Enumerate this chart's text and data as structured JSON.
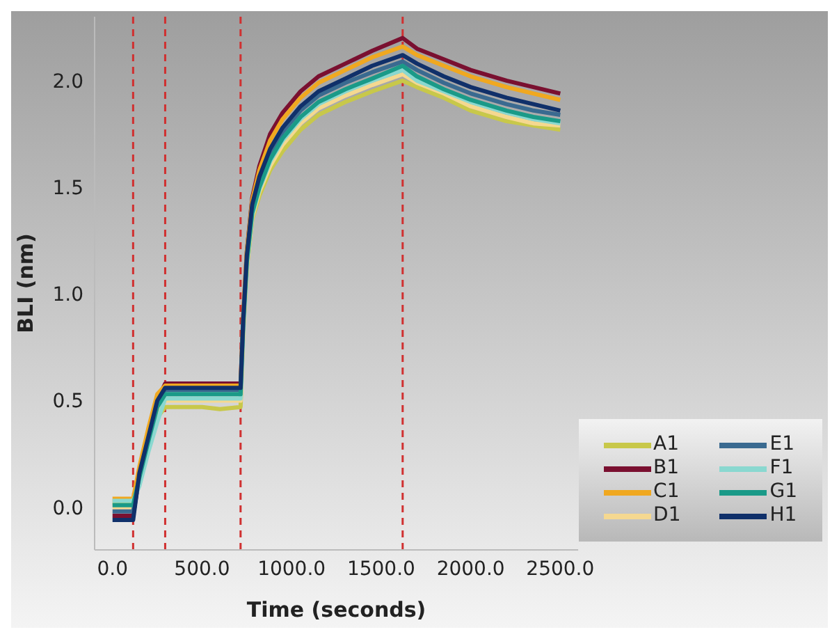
{
  "chart_data": {
    "type": "line",
    "xlabel": "Time (seconds)",
    "ylabel": "BLI (nm)",
    "x": [
      0,
      50,
      115,
      150,
      200,
      250,
      294,
      400,
      500,
      600,
      715,
      730,
      750,
      780,
      820,
      880,
      950,
      1050,
      1150,
      1300,
      1450,
      1620,
      1700,
      1850,
      2000,
      2200,
      2350,
      2500
    ],
    "series": [
      {
        "name": "A1",
        "color": "#c8c84a",
        "values": [
          0.02,
          0.02,
          0.02,
          0.12,
          0.28,
          0.42,
          0.47,
          0.47,
          0.47,
          0.46,
          0.47,
          0.83,
          1.12,
          1.35,
          1.46,
          1.58,
          1.67,
          1.77,
          1.84,
          1.9,
          1.95,
          2.0,
          1.97,
          1.92,
          1.86,
          1.81,
          1.79,
          1.77
        ]
      },
      {
        "name": "B1",
        "color": "#7a1030",
        "values": [
          -0.04,
          -0.04,
          -0.04,
          0.15,
          0.33,
          0.5,
          0.58,
          0.58,
          0.58,
          0.58,
          0.58,
          0.9,
          1.2,
          1.45,
          1.6,
          1.75,
          1.85,
          1.95,
          2.02,
          2.08,
          2.14,
          2.2,
          2.15,
          2.1,
          2.05,
          2.0,
          1.97,
          1.94
        ]
      },
      {
        "name": "C1",
        "color": "#f0a820",
        "values": [
          0.04,
          0.04,
          0.04,
          0.19,
          0.37,
          0.53,
          0.57,
          0.57,
          0.57,
          0.57,
          0.57,
          0.9,
          1.2,
          1.44,
          1.58,
          1.72,
          1.82,
          1.92,
          1.99,
          2.05,
          2.11,
          2.16,
          2.12,
          2.07,
          2.02,
          1.97,
          1.94,
          1.91
        ]
      },
      {
        "name": "D1",
        "color": "#f5d890",
        "values": [
          0,
          0,
          0,
          0.13,
          0.3,
          0.44,
          0.5,
          0.5,
          0.5,
          0.5,
          0.5,
          0.84,
          1.13,
          1.36,
          1.48,
          1.6,
          1.7,
          1.8,
          1.87,
          1.93,
          1.98,
          2.03,
          1.99,
          1.94,
          1.88,
          1.83,
          1.8,
          1.79
        ]
      },
      {
        "name": "E1",
        "color": "#3a6a90",
        "values": [
          -0.02,
          -0.02,
          -0.02,
          0.14,
          0.32,
          0.48,
          0.55,
          0.55,
          0.55,
          0.55,
          0.55,
          0.87,
          1.16,
          1.4,
          1.53,
          1.66,
          1.76,
          1.86,
          1.93,
          1.99,
          2.04,
          2.09,
          2.05,
          1.99,
          1.94,
          1.89,
          1.86,
          1.84
        ]
      },
      {
        "name": "F1",
        "color": "#8ad8d0",
        "values": [
          0.03,
          0.03,
          0.03,
          0.1,
          0.26,
          0.4,
          0.51,
          0.51,
          0.51,
          0.51,
          0.51,
          0.85,
          1.14,
          1.37,
          1.49,
          1.62,
          1.72,
          1.82,
          1.89,
          1.95,
          2.0,
          2.05,
          2.0,
          1.95,
          1.9,
          1.85,
          1.82,
          1.8
        ]
      },
      {
        "name": "G1",
        "color": "#1a9a88",
        "values": [
          0.01,
          0.01,
          0.01,
          0.14,
          0.31,
          0.47,
          0.53,
          0.53,
          0.53,
          0.53,
          0.53,
          0.86,
          1.15,
          1.38,
          1.5,
          1.63,
          1.73,
          1.83,
          1.9,
          1.96,
          2.01,
          2.07,
          2.02,
          1.96,
          1.91,
          1.86,
          1.83,
          1.81
        ]
      },
      {
        "name": "H1",
        "color": "#10306a",
        "values": [
          -0.06,
          -0.06,
          -0.06,
          0.16,
          0.33,
          0.5,
          0.56,
          0.56,
          0.56,
          0.56,
          0.56,
          0.88,
          1.18,
          1.42,
          1.55,
          1.68,
          1.78,
          1.88,
          1.95,
          2.01,
          2.07,
          2.12,
          2.08,
          2.02,
          1.97,
          1.92,
          1.89,
          1.86
        ]
      }
    ],
    "xlim": [
      -100,
      2600
    ],
    "xticks": [
      {
        "value": 0,
        "label": "0.0"
      },
      {
        "value": 500,
        "label": "500.0"
      },
      {
        "value": 1000,
        "label": "1000.0"
      },
      {
        "value": 1500,
        "label": "1500.0"
      },
      {
        "value": 2000,
        "label": "2000.0"
      },
      {
        "value": 2500,
        "label": "2500.0"
      }
    ],
    "ylim": [
      -0.2,
      2.3
    ],
    "yticks": [
      {
        "value": 0,
        "label": "0.0"
      },
      {
        "value": 0.5,
        "label": "0.5"
      },
      {
        "value": 1,
        "label": "1.0"
      },
      {
        "value": 1.5,
        "label": "1.5"
      },
      {
        "value": 2,
        "label": "2.0"
      }
    ],
    "ref_lines": [
      {
        "axis": "x",
        "value": 115,
        "color": "#d03030",
        "line_style": "dashed"
      },
      {
        "axis": "x",
        "value": 294,
        "color": "#d03030",
        "line_style": "dashed"
      },
      {
        "axis": "x",
        "value": 715,
        "color": "#d03030",
        "line_style": "dashed"
      },
      {
        "axis": "x",
        "value": 1620,
        "color": "#d03030",
        "line_style": "dashed"
      }
    ],
    "grid": false,
    "legend": "bottom right",
    "marker": "none",
    "line_style": "solid"
  }
}
